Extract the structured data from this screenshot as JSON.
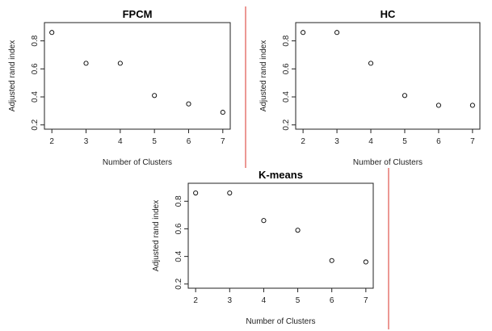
{
  "colors": {
    "divider": "#d9302a",
    "axis": "#222222",
    "points": "#000000"
  },
  "chart_data": [
    {
      "type": "scatter",
      "title": "FPCM",
      "xlabel": "Number of Clusters",
      "ylabel": "Adjusted rand index",
      "x": [
        2,
        3,
        4,
        5,
        6,
        7
      ],
      "y": [
        0.86,
        0.64,
        0.64,
        0.41,
        0.35,
        0.29
      ],
      "xlim": [
        2,
        7
      ],
      "ylim": [
        0.2,
        0.9
      ],
      "xticks": [
        "2",
        "3",
        "4",
        "5",
        "6",
        "7"
      ],
      "yticks": [
        "0.2",
        "0.4",
        "0.6",
        "0.8"
      ],
      "ytick_values": [
        0.2,
        0.4,
        0.6,
        0.8
      ],
      "grid": false
    },
    {
      "type": "scatter",
      "title": "HC",
      "xlabel": "Number of Clusters",
      "ylabel": "Adjusted rand index",
      "x": [
        2,
        3,
        4,
        5,
        6,
        7
      ],
      "y": [
        0.86,
        0.86,
        0.64,
        0.41,
        0.34,
        0.34
      ],
      "xlim": [
        2,
        7
      ],
      "ylim": [
        0.2,
        0.9
      ],
      "xticks": [
        "2",
        "3",
        "4",
        "5",
        "6",
        "7"
      ],
      "yticks": [
        "0.2",
        "0.4",
        "0.6",
        "0.8"
      ],
      "ytick_values": [
        0.2,
        0.4,
        0.6,
        0.8
      ],
      "grid": false
    },
    {
      "type": "scatter",
      "title": "K-means",
      "xlabel": "Number of Clusters",
      "ylabel": "Adjusted rand index",
      "x": [
        2,
        3,
        4,
        5,
        6,
        7
      ],
      "y": [
        0.86,
        0.86,
        0.66,
        0.59,
        0.37,
        0.36
      ],
      "xlim": [
        2,
        7
      ],
      "ylim": [
        0.2,
        0.9
      ],
      "xticks": [
        "2",
        "3",
        "4",
        "5",
        "6",
        "7"
      ],
      "yticks": [
        "0.2",
        "0.4",
        "0.6",
        "0.8"
      ],
      "ytick_values": [
        0.2,
        0.4,
        0.6,
        0.8
      ],
      "grid": false
    }
  ]
}
